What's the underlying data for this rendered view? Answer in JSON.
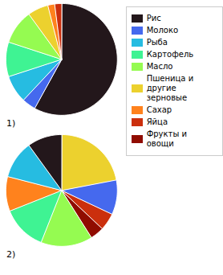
{
  "chart_data": [
    {
      "type": "pie",
      "title": "1)",
      "legend": "right",
      "categories": [
        "Рис",
        "Молоко",
        "Рыба",
        "Картофель",
        "Масло",
        "Пшеница и\nдругие зерновые",
        "Сахар",
        "Яйца"
      ],
      "values": [
        58,
        4,
        8,
        10,
        10,
        6,
        2,
        2
      ]
    },
    {
      "type": "pie",
      "title": "2)",
      "legend": "right",
      "categories": [
        "Пшеница и\nдругие зерновые",
        "Молоко",
        "Яйца",
        "Фрукты и\nовощи",
        "Масло",
        "Картофель",
        "Сахар",
        "Рыба",
        "Рис"
      ],
      "values": [
        22,
        10,
        5,
        4,
        15,
        13,
        10,
        11,
        10
      ]
    }
  ]
}
